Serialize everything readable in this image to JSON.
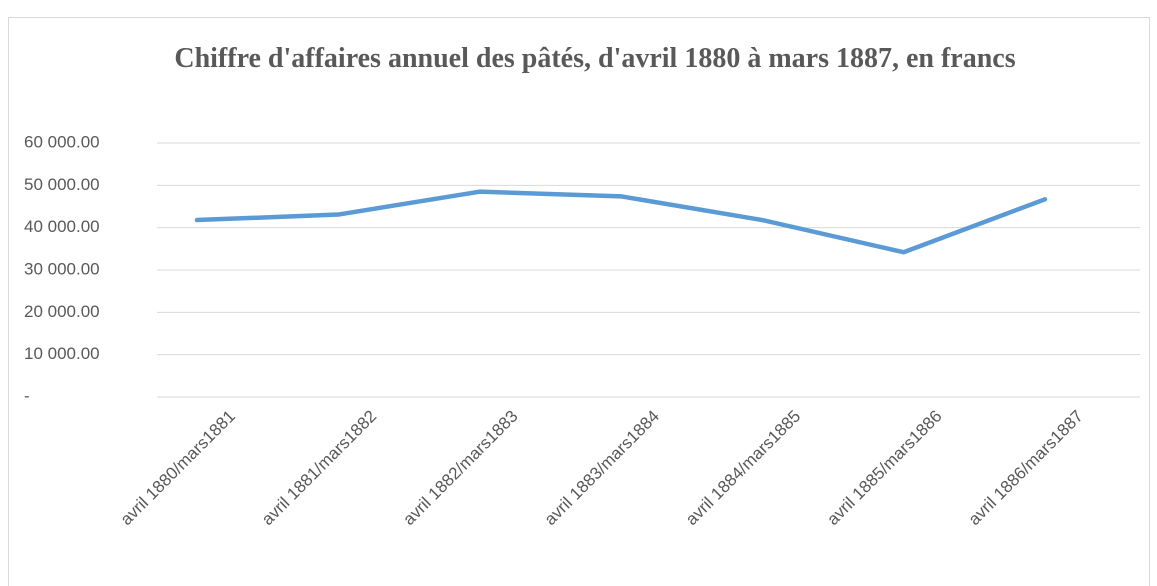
{
  "chart_data": {
    "type": "line",
    "title": "Chiffre d'affaires annuel des pâtés, d'avril 1880 à mars 1887, en francs",
    "categories": [
      "avril 1880/mars1881",
      "avril 1881/mars1882",
      "avril 1882/mars1883",
      "avril 1883/mars1884",
      "avril 1884/mars1885",
      "avril 1885/mars1886",
      "avril 1886/mars1887"
    ],
    "series": [
      {
        "name": "Chiffre d'affaires",
        "color": "#5b9bd5",
        "values": [
          41800,
          43100,
          48500,
          47400,
          41800,
          34200,
          46700
        ]
      }
    ],
    "ylim": [
      0,
      60000
    ],
    "yticks": [
      {
        "value": 0,
        "label": "-"
      },
      {
        "value": 10000,
        "label": "10 000.00"
      },
      {
        "value": 20000,
        "label": "20 000.00"
      },
      {
        "value": 30000,
        "label": "30 000.00"
      },
      {
        "value": 40000,
        "label": "40 000.00"
      },
      {
        "value": 50000,
        "label": "50 000.00"
      },
      {
        "value": 60000,
        "label": "60 000.00"
      }
    ],
    "grid": true
  }
}
